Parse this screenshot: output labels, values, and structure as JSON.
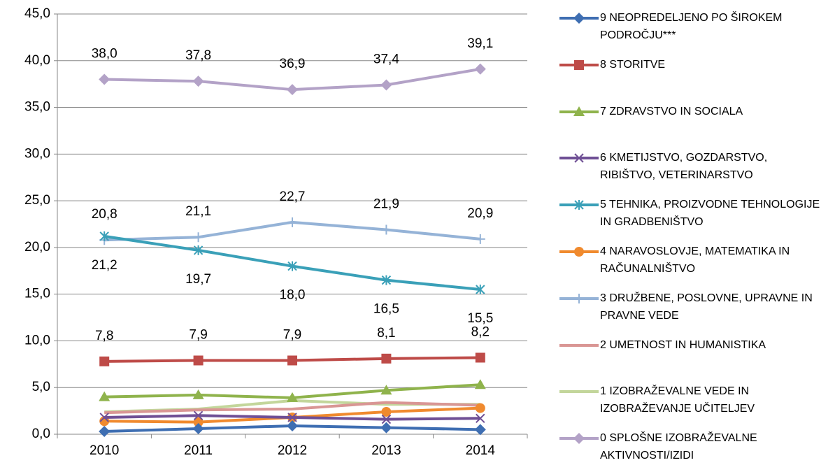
{
  "chart_data": {
    "type": "line",
    "categories": [
      "2010",
      "2011",
      "2012",
      "2013",
      "2014"
    ],
    "ylim": [
      0,
      45
    ],
    "yticks": [
      {
        "value": 0,
        "label": "0,0"
      },
      {
        "value": 5,
        "label": "5,0"
      },
      {
        "value": 10,
        "label": "10,0"
      },
      {
        "value": 15,
        "label": "15,0"
      },
      {
        "value": 20,
        "label": "20,0"
      },
      {
        "value": 25,
        "label": "25,0"
      },
      {
        "value": 30,
        "label": "30,0"
      },
      {
        "value": 35,
        "label": "35,0"
      },
      {
        "value": 40,
        "label": "40,0"
      },
      {
        "value": 45,
        "label": "45,0"
      }
    ],
    "grid": true,
    "legend": "right",
    "series": [
      {
        "name": "9 NEOPREDELJENO PO ŠIROKEM PODROČJU***",
        "color": "#3e6eb2",
        "marker": "diamond",
        "values": [
          0.3,
          0.6,
          0.9,
          0.7,
          0.5
        ]
      },
      {
        "name": "8 STORITVE",
        "color": "#be4b48",
        "marker": "square",
        "values": [
          7.8,
          7.9,
          7.9,
          8.1,
          8.2
        ],
        "value_labels": [
          "7,8",
          "7,9",
          "7,9",
          "8,1",
          "8,2"
        ]
      },
      {
        "name": "7 ZDRAVSTVO IN SOCIALA",
        "color": "#8fb34c",
        "marker": "triangle",
        "values": [
          4.0,
          4.2,
          3.9,
          4.7,
          5.3
        ]
      },
      {
        "name": "6 KMETIJSTVO, GOZDARSTVO, RIBIŠTVO, VETERINARSTVO",
        "color": "#6f4f95",
        "marker": "x",
        "values": [
          1.8,
          2.0,
          1.8,
          1.6,
          1.7
        ]
      },
      {
        "name": "5 TEHNIKA, PROIZVODNE TEHNOLOGIJE IN GRADBENIŠTVO",
        "color": "#3aa0b8",
        "marker": "asterisk",
        "values": [
          21.2,
          19.7,
          18.0,
          16.5,
          15.5
        ],
        "value_labels": [
          "21,2",
          "19,7",
          "18,0",
          "16,5",
          "15,5"
        ]
      },
      {
        "name": "4 NARAVOSLOVJE, MATEMATIKA IN RAČUNALNIŠTVO",
        "color": "#f08a2e",
        "marker": "circle",
        "values": [
          1.4,
          1.3,
          1.8,
          2.4,
          2.8
        ]
      },
      {
        "name": "3 DRUŽBENE, POSLOVNE, UPRAVNE IN PRAVNE VEDE",
        "color": "#95b3d7",
        "marker": "plus",
        "values": [
          20.8,
          21.1,
          22.7,
          21.9,
          20.9
        ],
        "value_labels": [
          "20,8",
          "21,1",
          "22,7",
          "21,9",
          "20,9"
        ]
      },
      {
        "name": "2 UMETNOST IN HUMANISTIKA",
        "color": "#d99694",
        "marker": "none",
        "values": [
          2.3,
          2.6,
          2.7,
          3.4,
          3.1
        ]
      },
      {
        "name": "1 IZOBRAŽEVALNE VEDE IN IZOBRAŽEVANJE UČITELJEV",
        "color": "#c3d69b",
        "marker": "none",
        "values": [
          2.4,
          2.7,
          3.6,
          3.2,
          3.2
        ]
      },
      {
        "name": "0 SPLOŠNE IZOBRAŽEVALNE AKTIVNOSTI/IZIDI",
        "color": "#b3a2c7",
        "marker": "diamond",
        "values": [
          38.0,
          37.8,
          36.9,
          37.4,
          39.1
        ],
        "value_labels": [
          "38,0",
          "37,8",
          "36,9",
          "37,4",
          "39,1"
        ]
      }
    ]
  }
}
